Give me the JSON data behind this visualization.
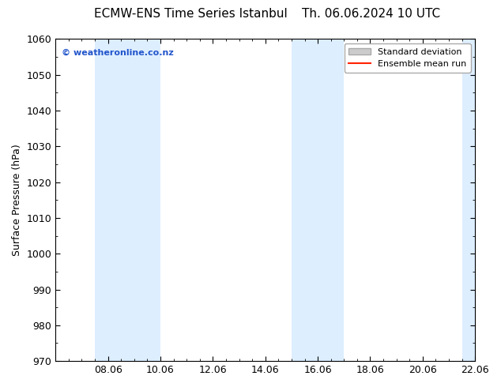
{
  "title_left": "ECMW-ENS Time Series Istanbul",
  "title_right": "Th. 06.06.2024 10 UTC",
  "ylabel": "Surface Pressure (hPa)",
  "ylim": [
    970,
    1060
  ],
  "yticks": [
    970,
    980,
    990,
    1000,
    1010,
    1020,
    1030,
    1040,
    1050,
    1060
  ],
  "xlim": [
    0,
    16
  ],
  "xtick_labels": [
    "08.06",
    "10.06",
    "12.06",
    "14.06",
    "16.06",
    "18.06",
    "20.06",
    "22.06"
  ],
  "xtick_positions": [
    2,
    4,
    6,
    8,
    10,
    12,
    14,
    16
  ],
  "shaded_bands": [
    {
      "xmin": 1.5,
      "xmax": 4.0,
      "color": "#ddeeff"
    },
    {
      "xmin": 9.0,
      "xmax": 11.0,
      "color": "#ddeeff"
    },
    {
      "xmin": 15.5,
      "xmax": 16.0,
      "color": "#ddeeff"
    }
  ],
  "watermark": "© weatheronline.co.nz",
  "watermark_color": "#2255cc",
  "legend_std_label": "Standard deviation",
  "legend_ens_label": "Ensemble mean run",
  "legend_std_facecolor": "#cccccc",
  "legend_std_edgecolor": "#aaaaaa",
  "legend_ens_color": "#ff2200",
  "background_color": "#ffffff",
  "title_fontsize": 11,
  "ylabel_fontsize": 9,
  "tick_fontsize": 9,
  "watermark_fontsize": 8,
  "legend_fontsize": 8,
  "fig_width": 6.34,
  "fig_height": 4.9,
  "dpi": 100
}
